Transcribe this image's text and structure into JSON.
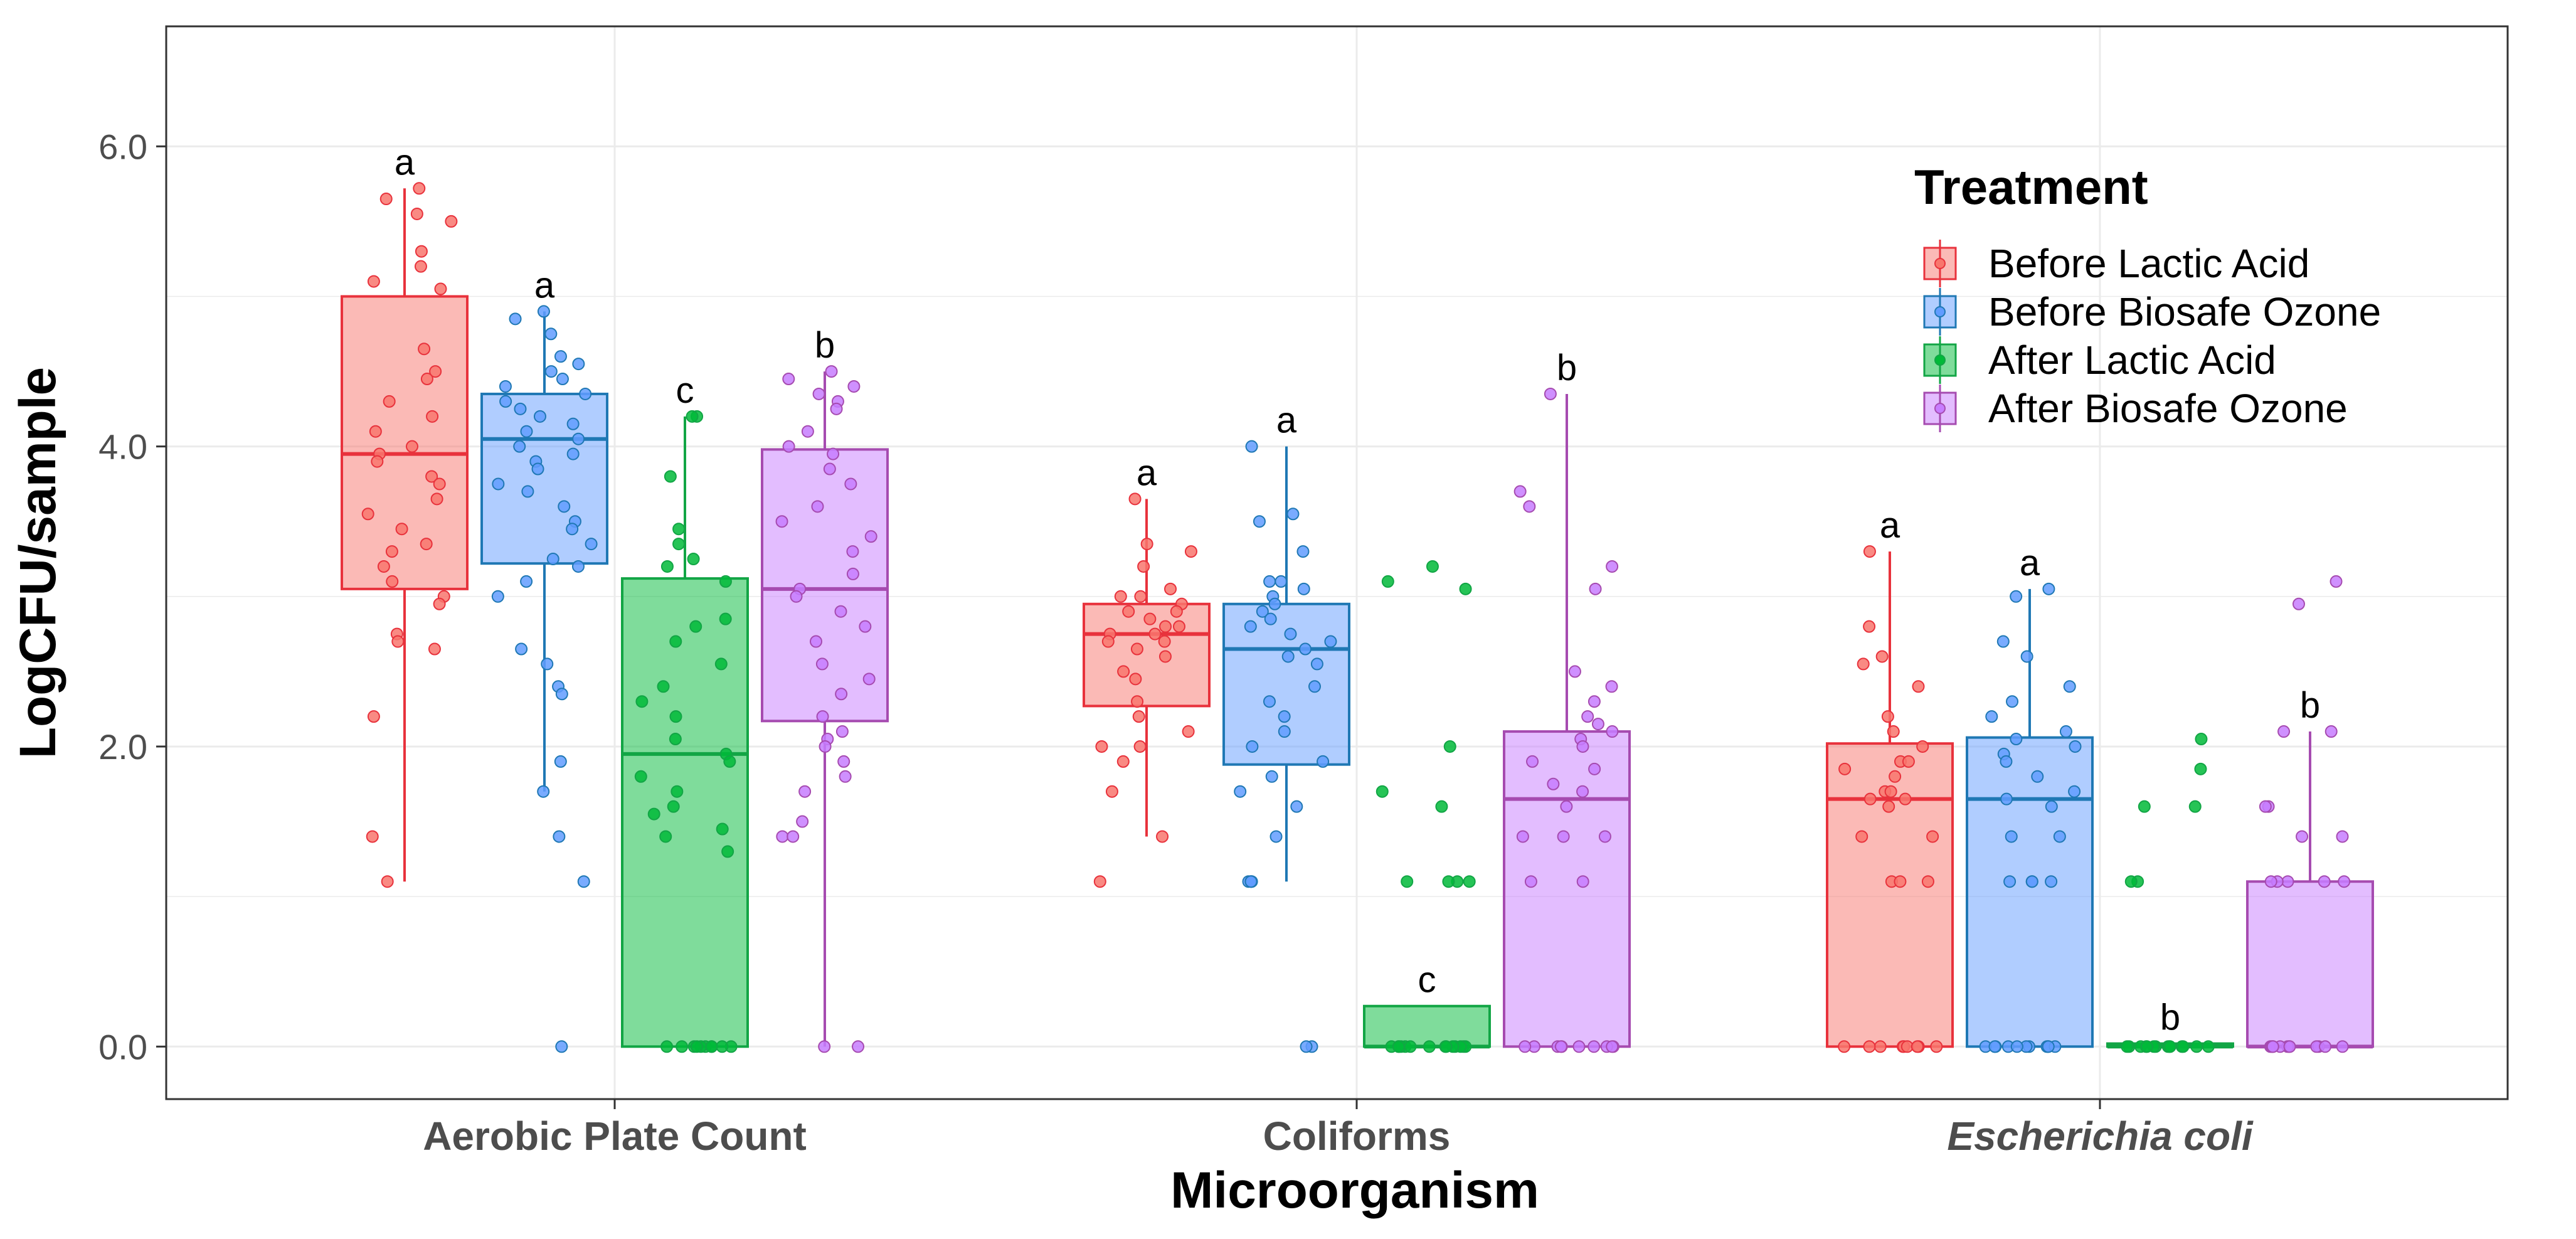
{
  "chart_data": {
    "type": "boxplot",
    "xlabel": "Microorganism",
    "ylabel": "LogCFU/sample",
    "ylim": [
      -0.35,
      6.8
    ],
    "yticks": [
      "0.0",
      "2.0",
      "4.0",
      "6.0"
    ],
    "grid": true,
    "categories": [
      "Aerobic Plate Count",
      "Coliforms",
      "Escherichia coli"
    ],
    "legend": {
      "title": "Treatment",
      "placement": "top-right",
      "entries": [
        "Before Lactic Acid",
        "Before Biosafe Ozone",
        "After Lactic Acid",
        "After Biosafe Ozone"
      ]
    },
    "series": [
      {
        "name": "Before Lactic Acid",
        "color": "#F8766D",
        "stroke": "#e8323c",
        "boxes": [
          {
            "min": 1.1,
            "q1": 3.05,
            "median": 3.95,
            "q3": 5.0,
            "max": 5.72,
            "letter": "a",
            "points": [
              5.72,
              5.65,
              5.55,
              5.5,
              5.3,
              5.2,
              5.1,
              5.05,
              4.65,
              4.5,
              4.45,
              4.3,
              4.2,
              4.1,
              4.0,
              3.95,
              3.9,
              3.8,
              3.75,
              3.65,
              3.55,
              3.45,
              3.35,
              3.3,
              3.2,
              3.1,
              3.0,
              2.95,
              2.75,
              2.7,
              2.65,
              2.2,
              1.4,
              1.1
            ]
          },
          {
            "min": 1.4,
            "q1": 2.27,
            "median": 2.75,
            "q3": 2.95,
            "max": 3.65,
            "letter": "a",
            "points": [
              3.65,
              3.35,
              3.3,
              3.2,
              3.05,
              3.0,
              3.0,
              2.95,
              2.9,
              2.9,
              2.85,
              2.8,
              2.8,
              2.75,
              2.75,
              2.7,
              2.7,
              2.65,
              2.6,
              2.5,
              2.45,
              2.3,
              2.2,
              2.1,
              2.0,
              2.0,
              1.9,
              1.7,
              1.4,
              1.1
            ]
          },
          {
            "min": 0.0,
            "q1": 0.0,
            "median": 1.65,
            "q3": 2.02,
            "max": 3.3,
            "letter": "a",
            "points": [
              3.3,
              2.8,
              2.6,
              2.55,
              2.4,
              2.2,
              2.1,
              2.0,
              1.9,
              1.9,
              1.85,
              1.8,
              1.7,
              1.7,
              1.65,
              1.65,
              1.6,
              1.4,
              1.4,
              1.1,
              1.1,
              1.1,
              0,
              0,
              0,
              0,
              0,
              0,
              0,
              0,
              0
            ]
          }
        ]
      },
      {
        "name": "Before Biosafe Ozone",
        "color": "#619CFF",
        "stroke": "#1f78b4",
        "boxes": [
          {
            "min": 1.7,
            "q1": 3.22,
            "median": 4.05,
            "q3": 4.35,
            "max": 4.9,
            "letter": "a",
            "points": [
              4.9,
              4.85,
              4.75,
              4.6,
              4.55,
              4.5,
              4.45,
              4.4,
              4.35,
              4.3,
              4.25,
              4.2,
              4.15,
              4.1,
              4.05,
              4.0,
              3.95,
              3.9,
              3.85,
              3.75,
              3.7,
              3.6,
              3.5,
              3.45,
              3.35,
              3.25,
              3.2,
              3.1,
              3.0,
              2.65,
              2.55,
              2.4,
              2.35,
              1.9,
              1.7,
              1.4,
              1.1,
              0
            ]
          },
          {
            "min": 1.1,
            "q1": 1.88,
            "median": 2.65,
            "q3": 2.95,
            "max": 4.0,
            "letter": "a",
            "points": [
              4.0,
              3.55,
              3.5,
              3.3,
              3.1,
              3.1,
              3.05,
              3.0,
              2.95,
              2.9,
              2.85,
              2.8,
              2.75,
              2.7,
              2.65,
              2.6,
              2.55,
              2.4,
              2.3,
              2.2,
              2.1,
              2.0,
              1.9,
              1.8,
              1.7,
              1.6,
              1.4,
              1.1,
              1.1,
              1.1,
              1.1,
              0,
              0
            ]
          },
          {
            "min": 0.0,
            "q1": 0.0,
            "median": 1.65,
            "q3": 2.06,
            "max": 3.05,
            "letter": "a",
            "points": [
              3.05,
              3.0,
              2.7,
              2.6,
              2.4,
              2.3,
              2.2,
              2.1,
              2.05,
              2.0,
              1.95,
              1.9,
              1.8,
              1.7,
              1.65,
              1.6,
              1.4,
              1.4,
              1.1,
              1.1,
              1.1,
              1.1,
              0,
              0,
              0,
              0,
              0,
              0,
              0,
              0,
              0,
              0,
              0
            ]
          }
        ]
      },
      {
        "name": "After Lactic Acid",
        "color": "#00BA38",
        "stroke": "#12a545",
        "boxes": [
          {
            "min": 0.0,
            "q1": 0.0,
            "median": 1.95,
            "q3": 3.12,
            "max": 4.2,
            "letter": "c",
            "points": [
              4.2,
              4.2,
              3.8,
              3.45,
              3.35,
              3.25,
              3.2,
              3.1,
              2.85,
              2.8,
              2.7,
              2.55,
              2.4,
              2.3,
              2.2,
              2.05,
              1.95,
              1.9,
              1.8,
              1.7,
              1.6,
              1.55,
              1.45,
              1.4,
              1.3,
              0,
              0,
              0,
              0,
              0,
              0,
              0,
              0,
              0,
              0
            ]
          },
          {
            "min": 0.0,
            "q1": 0.0,
            "median": 0.0,
            "q3": 0.27,
            "max": 0.27,
            "letter": "c",
            "points": [
              3.2,
              3.1,
              3.05,
              2.0,
              1.7,
              1.6,
              1.1,
              1.1,
              1.1,
              1.1,
              0,
              0,
              0,
              0,
              0,
              0,
              0,
              0,
              0,
              0,
              0,
              0,
              0,
              0
            ]
          },
          {
            "min": 0.0,
            "q1": 0.0,
            "median": 0.0,
            "q3": 0.02,
            "max": 0.02,
            "letter": "b",
            "points": [
              2.05,
              1.85,
              1.6,
              1.6,
              1.1,
              1.1,
              0,
              0,
              0,
              0,
              0,
              0,
              0,
              0,
              0,
              0,
              0,
              0,
              0,
              0
            ]
          }
        ]
      },
      {
        "name": "After Biosafe Ozone",
        "color": "#C77CFF",
        "stroke": "#a64bb0",
        "boxes": [
          {
            "min": 0.0,
            "q1": 2.17,
            "median": 3.05,
            "q3": 3.98,
            "max": 4.5,
            "letter": "b",
            "points": [
              4.5,
              4.45,
              4.4,
              4.35,
              4.3,
              4.25,
              4.1,
              4.0,
              3.95,
              3.85,
              3.75,
              3.6,
              3.5,
              3.4,
              3.3,
              3.15,
              3.05,
              3.0,
              2.9,
              2.8,
              2.7,
              2.55,
              2.45,
              2.35,
              2.2,
              2.1,
              2.05,
              2.0,
              1.9,
              1.8,
              1.7,
              1.5,
              1.4,
              1.4,
              0,
              0
            ]
          },
          {
            "min": 0.0,
            "q1": 0.0,
            "median": 1.65,
            "q3": 2.1,
            "max": 4.35,
            "letter": "b",
            "points": [
              4.35,
              3.7,
              3.6,
              3.2,
              3.05,
              2.5,
              2.4,
              2.3,
              2.2,
              2.15,
              2.1,
              2.05,
              2.0,
              1.9,
              1.85,
              1.75,
              1.7,
              1.6,
              1.4,
              1.4,
              1.4,
              1.1,
              1.1,
              0,
              0,
              0,
              0,
              0,
              0,
              0,
              0,
              0,
              0
            ]
          },
          {
            "min": 0.0,
            "q1": 0.0,
            "median": 0.0,
            "q3": 1.1,
            "max": 2.1,
            "letter": "b",
            "points": [
              3.1,
              2.95,
              2.1,
              2.1,
              1.6,
              1.6,
              1.4,
              1.4,
              1.1,
              1.1,
              1.1,
              1.1,
              1.1,
              0,
              0,
              0,
              0,
              0,
              0,
              0,
              0,
              0,
              0,
              0,
              0
            ]
          }
        ]
      }
    ]
  }
}
